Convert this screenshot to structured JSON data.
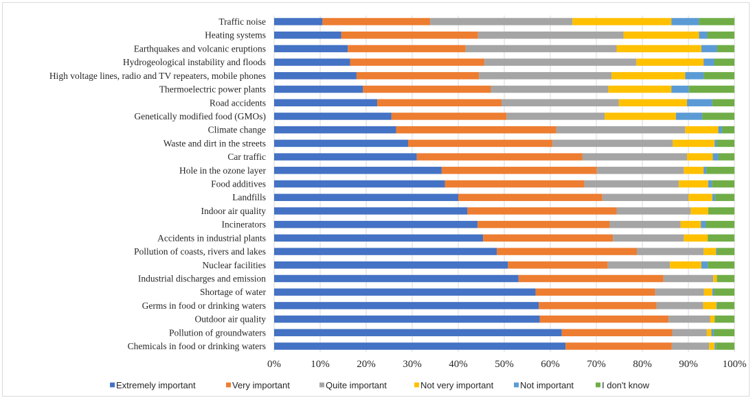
{
  "chart_data": {
    "type": "bar",
    "orientation": "horizontal",
    "stacked": true,
    "xlim": [
      0,
      100
    ],
    "x_unit": "%",
    "x_ticks": [
      "0%",
      "10%",
      "20%",
      "30%",
      "40%",
      "50%",
      "60%",
      "70%",
      "80%",
      "90%",
      "100%"
    ],
    "grid": true,
    "legend_position": "bottom",
    "categories": [
      "Traffic noise",
      "Heating systems",
      "Earthquakes and volcanic eruptions",
      "Hydrogeological instability and floods",
      "High voltage lines, radio and TV repeaters, mobile phones",
      "Thermoelectric power plants",
      "Road accidents",
      "Genetically modified food (GMOs)",
      "Climate change",
      "Waste and dirt in the streets",
      "Car traffic",
      "Hole in the ozone layer",
      "Food additives",
      "Landfills",
      "Indoor air quality ",
      "Incinerators",
      "Accidents in industrial plants",
      "Pollution of coasts, rivers and lakes",
      "Nuclear facilities",
      "Industrial discharges and emission",
      "Shortage of water",
      "Germs in food or drinking waters",
      "Outdoor air quality",
      "Pollution of groundwaters",
      "Chemicals in food or drinking waters"
    ],
    "series": [
      {
        "name": "Extremely important",
        "color": "#4472c4",
        "values": [
          10.5,
          14.6,
          16.0,
          16.5,
          17.9,
          19.3,
          22.4,
          25.5,
          26.5,
          29.1,
          31.0,
          36.4,
          37.1,
          40.0,
          42.0,
          44.2,
          45.4,
          48.4,
          50.8,
          53.1,
          56.8,
          57.5,
          57.7,
          62.5,
          63.3
        ]
      },
      {
        "name": "Very important",
        "color": "#ed7d31",
        "values": [
          23.4,
          29.7,
          25.6,
          29.2,
          26.6,
          27.8,
          27.0,
          25.0,
          34.8,
          31.4,
          36.0,
          33.7,
          30.3,
          31.3,
          32.4,
          28.7,
          28.2,
          30.4,
          21.7,
          31.5,
          26.0,
          25.6,
          28.0,
          24.0,
          23.1
        ]
      },
      {
        "name": "Quite important",
        "color": "#a5a5a5",
        "values": [
          30.9,
          31.6,
          32.8,
          33.0,
          28.8,
          25.5,
          25.5,
          21.3,
          28.0,
          26.1,
          22.7,
          18.9,
          20.5,
          18.7,
          16.1,
          15.4,
          15.4,
          14.5,
          13.5,
          10.8,
          10.6,
          10.1,
          9.0,
          7.5,
          8.1
        ]
      },
      {
        "name": "Not very important",
        "color": "#ffc000",
        "values": [
          21.5,
          16.4,
          18.4,
          14.6,
          16.0,
          13.7,
          14.8,
          15.5,
          7.2,
          9.1,
          5.6,
          4.3,
          6.4,
          5.2,
          3.8,
          4.4,
          5.2,
          2.7,
          6.8,
          0.8,
          1.8,
          2.9,
          1.0,
          1.0,
          1.2
        ]
      },
      {
        "name": "Not important",
        "color": "#5b9bd5",
        "values": [
          6.0,
          1.8,
          3.4,
          2.3,
          4.0,
          3.8,
          5.5,
          5.7,
          0.8,
          0.5,
          1.2,
          0.6,
          0.8,
          0.6,
          0.0,
          1.1,
          0.0,
          0.2,
          1.4,
          0.0,
          0.4,
          0.1,
          0.0,
          0.5,
          0.3
        ]
      },
      {
        "name": "I don't know",
        "color": "#70ad47",
        "values": [
          7.7,
          5.9,
          3.8,
          4.4,
          6.7,
          9.9,
          4.8,
          7.0,
          2.7,
          3.8,
          3.5,
          6.1,
          4.9,
          4.2,
          5.7,
          6.2,
          5.8,
          3.8,
          5.8,
          3.8,
          4.4,
          3.8,
          4.3,
          4.5,
          4.0
        ]
      }
    ]
  }
}
